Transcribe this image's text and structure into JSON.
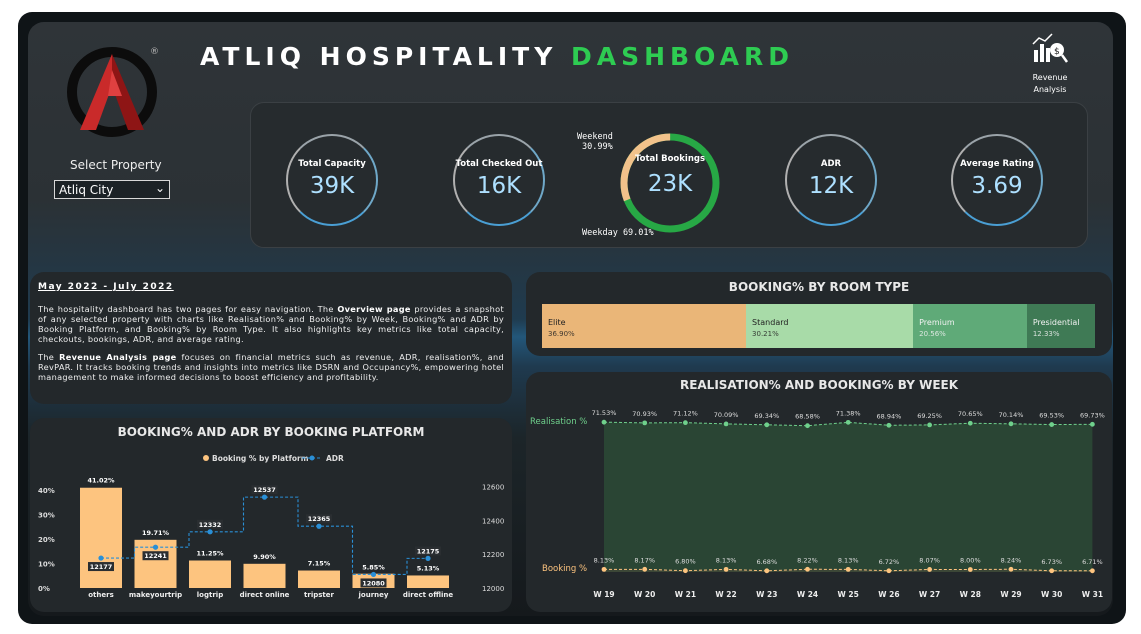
{
  "header": {
    "title_main": "ATLIQ HOSPITALITY ",
    "title_accent": "DASHBOARD",
    "revenue_nav": "Revenue Analysis"
  },
  "filter": {
    "label": "Select Property",
    "value": "Atliq City"
  },
  "kpis": [
    {
      "label": "Total Capacity",
      "value": "39K"
    },
    {
      "label": "Total Checked Out",
      "value": "16K"
    },
    {
      "label": "Total Bookings",
      "value": "23K"
    },
    {
      "label": "ADR",
      "value": "12K"
    },
    {
      "label": "Average Rating",
      "value": "3.69"
    }
  ],
  "booking_split": {
    "weekend_label": "Weekend",
    "weekend_value": "30.99%",
    "weekday_label": "Weekday 69.01%",
    "weekend_fraction": 0.3099
  },
  "description": {
    "date_range": "May 2022 - July 2022",
    "p1_a": "The hospitality dashboard has two pages for easy navigation. The ",
    "p1_b": "Overview page",
    "p1_c": " provides a snapshot of any selected property with charts like Realisation% and Booking% by Week, Booking% and ADR by Booking Platform, and Booking% by Room Type. It also highlights key metrics like total capacity, checkouts, bookings, ADR, and average rating.",
    "p2_a": "The ",
    "p2_b": "Revenue Analysis page",
    "p2_c": " focuses on financial metrics such as revenue, ADR, realisation%, and RevPAR. It tracks booking trends and insights into metrics like DSRN and Occupancy%, empowering hotel management to make informed decisions to boost efficiency and profitability."
  },
  "colors": {
    "accent_green": "#2ecc52",
    "booking_orange": "#fdc47f",
    "adr_blue": "#2a8fd6",
    "realisation_green": "#6fd08c"
  },
  "chart_data": [
    {
      "type": "bar",
      "title": "BOOKING% BY ROOM TYPE",
      "categories": [
        "Elite",
        "Standard",
        "Premium",
        "Presidential"
      ],
      "values": [
        36.9,
        30.21,
        20.56,
        12.33
      ],
      "labels": [
        "36.90%",
        "30.21%",
        "20.56%",
        "12.33%"
      ],
      "colors": [
        "#eab678",
        "#a8dba8",
        "#5faa78",
        "#3f7a55"
      ]
    },
    {
      "type": "bar",
      "title": "BOOKING% AND ADR BY BOOKING PLATFORM",
      "categories": [
        "others",
        "makeyourtrip",
        "logtrip",
        "direct online",
        "tripster",
        "journey",
        "direct offline"
      ],
      "series": [
        {
          "name": "Booking % by Platform",
          "values": [
            41.02,
            19.71,
            11.25,
            9.9,
            7.15,
            5.85,
            5.13
          ],
          "labels": [
            "41.02%",
            "19.71%",
            "11.25%",
            "9.90%",
            "7.15%",
            "5.85%",
            "5.13%"
          ]
        },
        {
          "name": "ADR",
          "values": [
            12177,
            12241,
            12332,
            12537,
            12365,
            12080,
            12175
          ],
          "labels": [
            "12177",
            "12241",
            "12332",
            "12537",
            "12365",
            "12080",
            "12175"
          ]
        }
      ],
      "y_left_ticks": [
        "0%",
        "10%",
        "20%",
        "30%",
        "40%"
      ],
      "y_left_range": [
        0,
        45
      ],
      "y_right_ticks": [
        "12000",
        "12200",
        "12400",
        "12600"
      ],
      "y_right_range": [
        12000,
        12650
      ]
    },
    {
      "type": "line",
      "title": "REALISATION% AND BOOKING% BY WEEK",
      "categories": [
        "W 19",
        "W 20",
        "W 21",
        "W 22",
        "W 23",
        "W 24",
        "W 25",
        "W 26",
        "W 27",
        "W 28",
        "W 29",
        "W 30",
        "W 31"
      ],
      "series": [
        {
          "name": "Realisation %",
          "values": [
            71.53,
            70.93,
            71.12,
            70.09,
            69.34,
            68.58,
            71.38,
            68.94,
            69.25,
            70.65,
            70.14,
            69.53,
            69.73
          ],
          "labels": [
            "71.53%",
            "70.93%",
            "71.12%",
            "70.09%",
            "69.34%",
            "68.58%",
            "71.38%",
            "68.94%",
            "69.25%",
            "70.65%",
            "70.14%",
            "69.53%",
            "69.73%"
          ]
        },
        {
          "name": "Booking %",
          "values": [
            8.13,
            8.17,
            6.8,
            8.13,
            6.68,
            8.22,
            8.13,
            6.72,
            8.07,
            8.0,
            8.24,
            6.73,
            6.71
          ],
          "labels": [
            "8.13%",
            "8.17%",
            "6.80%",
            "8.13%",
            "6.68%",
            "8.22%",
            "8.13%",
            "6.72%",
            "8.07%",
            "8.00%",
            "8.24%",
            "6.73%",
            "6.71%"
          ]
        }
      ]
    }
  ]
}
